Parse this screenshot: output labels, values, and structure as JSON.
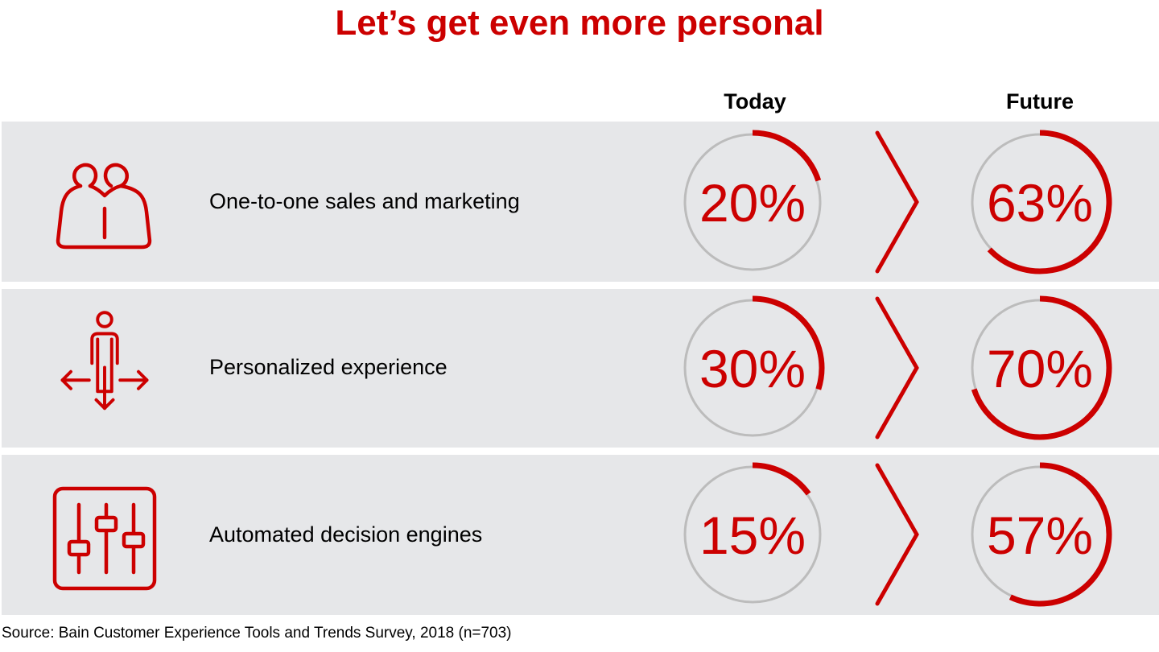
{
  "title": "Let’s get even more personal",
  "columns": {
    "today": "Today",
    "future": "Future"
  },
  "rows": [
    {
      "label": "One-to-one sales and marketing",
      "icon": "two-people-icon",
      "today": 20,
      "future": 63,
      "today_label": "20%",
      "future_label": "63%"
    },
    {
      "label": "Personalized experience",
      "icon": "person-directions-icon",
      "today": 30,
      "future": 70,
      "today_label": "30%",
      "future_label": "70%"
    },
    {
      "label": "Automated decision engines",
      "icon": "sliders-icon",
      "today": 15,
      "future": 57,
      "today_label": "15%",
      "future_label": "57%"
    }
  ],
  "source": "Source: Bain Customer Experience Tools and Trends Survey, 2018 (n=703)",
  "colors": {
    "accent": "#cc0000",
    "track": "#bcbcbc",
    "row_bg": "#e6e7e9"
  },
  "chart_data": {
    "type": "table",
    "title": "Let’s get even more personal",
    "chart_kind": "progress-ring comparison",
    "categories": [
      "One-to-one sales and marketing",
      "Personalized experience",
      "Automated decision engines"
    ],
    "series": [
      {
        "name": "Today",
        "values": [
          20,
          30,
          15
        ]
      },
      {
        "name": "Future",
        "values": [
          63,
          70,
          57
        ]
      }
    ],
    "unit": "%",
    "ylim": [
      0,
      100
    ],
    "grid": false,
    "legend": "column headers (Today, Future)",
    "annotations": [
      "Source: Bain Customer Experience Tools and Trends Survey, 2018 (n=703)"
    ]
  }
}
